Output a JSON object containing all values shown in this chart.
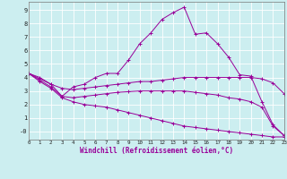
{
  "xlabel": "Windchill (Refroidissement éolien,°C)",
  "background_color": "#cceef0",
  "grid_color": "#aadddd",
  "line_color": "#990099",
  "xlim": [
    0,
    23
  ],
  "ylim": [
    -0.6,
    9.6
  ],
  "xticks": [
    0,
    1,
    2,
    3,
    4,
    5,
    6,
    7,
    8,
    9,
    10,
    11,
    12,
    13,
    14,
    15,
    16,
    17,
    18,
    19,
    20,
    21,
    22,
    23
  ],
  "yticks": [
    0,
    1,
    2,
    3,
    4,
    5,
    6,
    7,
    8,
    9
  ],
  "ytick_labels": [
    "-0",
    "1",
    "2",
    "3",
    "4",
    "5",
    "6",
    "7",
    "8",
    "9"
  ],
  "line1_x": [
    0,
    1,
    2,
    3,
    4,
    5,
    6,
    7,
    8,
    9,
    10,
    11,
    12,
    13,
    14,
    15,
    16,
    17,
    18,
    19,
    20,
    21,
    22,
    23
  ],
  "line1_y": [
    4.3,
    4.0,
    3.5,
    2.6,
    3.3,
    3.5,
    4.0,
    4.3,
    4.3,
    5.3,
    6.5,
    7.3,
    8.3,
    8.8,
    9.2,
    7.2,
    7.3,
    6.5,
    5.5,
    4.2,
    4.1,
    2.2,
    0.5,
    -0.3
  ],
  "line2_x": [
    0,
    1,
    2,
    3,
    4,
    5,
    6,
    7,
    8,
    9,
    10,
    11,
    12,
    13,
    14,
    15,
    16,
    17,
    18,
    19,
    20,
    21,
    22,
    23
  ],
  "line2_y": [
    4.3,
    3.9,
    3.5,
    3.2,
    3.1,
    3.2,
    3.3,
    3.4,
    3.5,
    3.6,
    3.7,
    3.7,
    3.8,
    3.9,
    4.0,
    4.0,
    4.0,
    4.0,
    4.0,
    4.0,
    4.0,
    3.9,
    3.6,
    2.8
  ],
  "line3_x": [
    0,
    1,
    2,
    3,
    4,
    5,
    6,
    7,
    8,
    9,
    10,
    11,
    12,
    13,
    14,
    15,
    16,
    17,
    18,
    19,
    20,
    21,
    22,
    23
  ],
  "line3_y": [
    4.3,
    3.8,
    3.3,
    2.6,
    2.5,
    2.6,
    2.7,
    2.8,
    2.9,
    2.95,
    3.0,
    3.0,
    3.0,
    3.0,
    3.0,
    2.9,
    2.8,
    2.7,
    2.5,
    2.4,
    2.2,
    1.8,
    0.4,
    -0.3
  ],
  "line4_x": [
    0,
    1,
    2,
    3,
    4,
    5,
    6,
    7,
    8,
    9,
    10,
    11,
    12,
    13,
    14,
    15,
    16,
    17,
    18,
    19,
    20,
    21,
    22,
    23
  ],
  "line4_y": [
    4.3,
    3.7,
    3.2,
    2.5,
    2.2,
    2.0,
    1.9,
    1.8,
    1.6,
    1.4,
    1.2,
    1.0,
    0.8,
    0.6,
    0.4,
    0.3,
    0.2,
    0.1,
    0.0,
    -0.1,
    -0.2,
    -0.3,
    -0.4,
    -0.4
  ]
}
